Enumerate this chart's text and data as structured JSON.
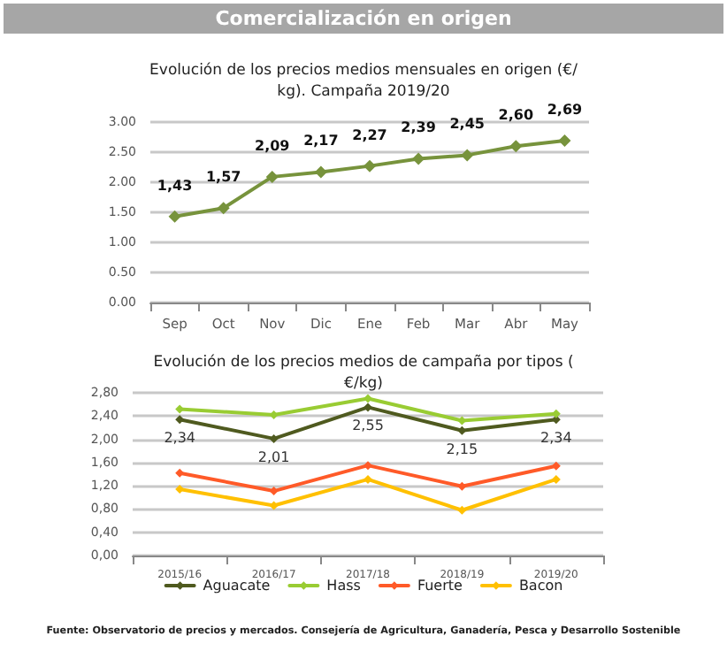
{
  "chart_data": [
    {
      "type": "line",
      "title": "Evolución de los precios medios mensuales en origen (€/kg). Campaña 2019/20",
      "annotations": [
        "Comercialización en origen"
      ],
      "categories": [
        "Sep",
        "Oct",
        "Nov",
        "Dic",
        "Ene",
        "Feb",
        "Mar",
        "Abr",
        "May"
      ],
      "series": [
        {
          "color": "#77933c",
          "values": [
            1.43,
            1.57,
            2.09,
            2.17,
            2.27,
            2.39,
            2.45,
            2.6,
            2.69
          ],
          "value_labels": [
            "1,43",
            "1,57",
            "2,09",
            "2,17",
            "2,27",
            "2,39",
            "2,45",
            "2,60",
            "2,69"
          ]
        }
      ],
      "ylim": [
        0,
        3
      ],
      "yticks": [
        {
          "value": 0,
          "label": "0.00"
        },
        {
          "value": 0.5,
          "label": "0.50"
        },
        {
          "value": 1,
          "label": "1.00"
        },
        {
          "value": 1.5,
          "label": "1.50"
        },
        {
          "value": 2,
          "label": "2.00"
        },
        {
          "value": 2.5,
          "label": "2.50"
        },
        {
          "value": 3,
          "label": "3.00"
        }
      ],
      "grid": "y",
      "marker": "diamond",
      "line_style": "solid"
    },
    {
      "type": "line",
      "title": "Evolución de los precios medios de campaña por tipos (€/kg)",
      "annotations": [
        "Fuente: Observatorio de precios y mercados. Consejería de Agricultura,  Ganadería, Pesca y Desarrollo Sostenible"
      ],
      "categories": [
        "2015/16",
        "2016/17",
        "2017/18",
        "2018/19",
        "2019/20"
      ],
      "series": [
        {
          "name": "Aguacate",
          "color": "#4f5a1f",
          "values": [
            2.34,
            2.01,
            2.55,
            2.15,
            2.34
          ],
          "value_labels": [
            "2,34",
            "2,01",
            "2,55",
            "2,15",
            "2,34"
          ]
        },
        {
          "name": "Hass",
          "color": "#99cc33",
          "values": [
            2.52,
            2.42,
            2.7,
            2.32,
            2.44
          ]
        },
        {
          "name": "Fuerte",
          "color": "#ff5a28",
          "values": [
            1.42,
            1.11,
            1.55,
            1.19,
            1.54
          ]
        },
        {
          "name": "Bacon",
          "color": "#ffc000",
          "values": [
            1.14,
            0.86,
            1.31,
            0.78,
            1.31
          ]
        }
      ],
      "ylim": [
        0,
        2.8
      ],
      "yticks": [
        {
          "value": 0,
          "label": "0,00"
        },
        {
          "value": 0.4,
          "label": "0,40"
        },
        {
          "value": 0.8,
          "label": "0,80"
        },
        {
          "value": 1.2,
          "label": "1,20"
        },
        {
          "value": 1.6,
          "label": "1,60"
        },
        {
          "value": 2,
          "label": "2,00"
        },
        {
          "value": 2.4,
          "label": "2,40"
        },
        {
          "value": 2.8,
          "label": "2,80"
        }
      ],
      "grid": "y",
      "legend": "bottom",
      "marker": "diamond",
      "line_style": "solid"
    }
  ]
}
